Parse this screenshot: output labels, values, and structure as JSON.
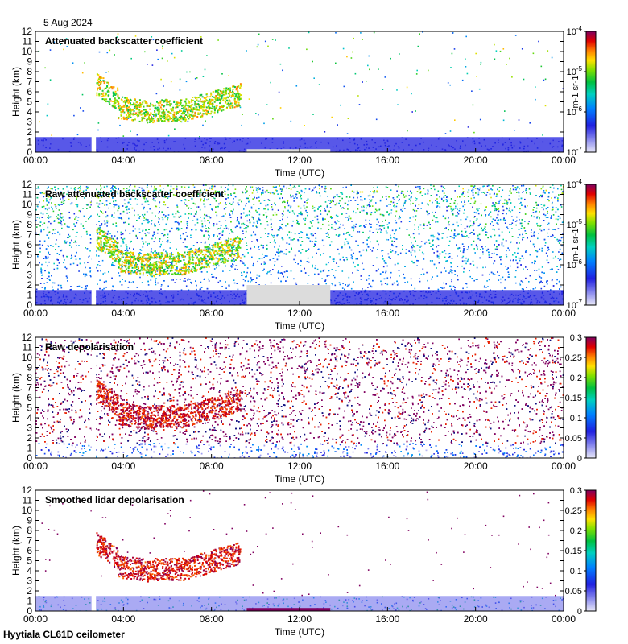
{
  "date_label": "5 Aug 2024",
  "footer_label": "Hyytiala CL61D ceilometer",
  "colors": {
    "frame": "#000000",
    "missing": "#dcdcdc",
    "background": "#ffffff",
    "clear_air": "#2020e0",
    "cirrus_low": "#00b050",
    "cirrus_high": "#ffd000",
    "peak": "#d01010",
    "noise_magenta": "#800060",
    "noise_navy": "#101080"
  },
  "chart_data": [
    {
      "type": "heatmap",
      "title": "Attenuated backscatter coefficient",
      "xlabel": "Time (UTC)",
      "ylabel": "Height (km)",
      "x_ticks": [
        "00:00",
        "04:00",
        "08:00",
        "12:00",
        "16:00",
        "20:00",
        "00:00"
      ],
      "y_ticks": [
        "0",
        "1",
        "2",
        "3",
        "4",
        "5",
        "6",
        "7",
        "8",
        "9",
        "10",
        "11",
        "12"
      ],
      "xlim_hours": [
        0,
        24
      ],
      "ylim_km": [
        0,
        12
      ],
      "colorbar": {
        "scale": "log",
        "ticks": [
          "10-7",
          "10-6",
          "10-5",
          "10-4"
        ],
        "label": "m-1 sr-1",
        "colormap": "rainbow"
      },
      "features": {
        "gap_hours": [
          2.55,
          2.75
        ],
        "no_data_hours": [
          9.6,
          13.4
        ],
        "boundary_layer_top_km": 1.5,
        "cirrus_layer_km": [
          3.2,
          7.5
        ],
        "cirrus_hours": [
          2.75,
          9.3
        ]
      }
    },
    {
      "type": "heatmap",
      "title": "Raw attenuated backscatter coefficient",
      "xlabel": "Time (UTC)",
      "ylabel": "Height (km)",
      "x_ticks": [
        "00:00",
        "04:00",
        "08:00",
        "12:00",
        "16:00",
        "20:00",
        "00:00"
      ],
      "y_ticks": [
        "0",
        "1",
        "2",
        "3",
        "4",
        "5",
        "6",
        "7",
        "8",
        "9",
        "10",
        "11",
        "12"
      ],
      "xlim_hours": [
        0,
        24
      ],
      "ylim_km": [
        0,
        12
      ],
      "colorbar": {
        "scale": "log",
        "ticks": [
          "10-7",
          "10-6",
          "10-5",
          "10-4"
        ],
        "label": "m-1 sr-1",
        "colormap": "rainbow"
      },
      "features": {
        "gap_hours": [
          2.55,
          2.75
        ],
        "no_data_hours": [
          9.6,
          13.4
        ],
        "boundary_layer_top_km": 1.5,
        "cirrus_layer_km": [
          3.2,
          7.5
        ],
        "cirrus_hours": [
          2.75,
          9.3
        ]
      }
    },
    {
      "type": "heatmap",
      "title": "Raw depolarisation",
      "xlabel": "Time (UTC)",
      "ylabel": "Height (km)",
      "x_ticks": [
        "00:00",
        "04:00",
        "08:00",
        "12:00",
        "16:00",
        "20:00",
        "00:00"
      ],
      "y_ticks": [
        "0",
        "1",
        "2",
        "3",
        "4",
        "5",
        "6",
        "7",
        "8",
        "9",
        "10",
        "11",
        "12"
      ],
      "xlim_hours": [
        0,
        24
      ],
      "ylim_km": [
        0,
        12
      ],
      "colorbar": {
        "scale": "linear",
        "ticks": [
          "0",
          "0.05",
          "0.1",
          "0.15",
          "0.2",
          "0.25",
          "0.3"
        ],
        "label": "",
        "colormap": "rainbow"
      },
      "features": {
        "gap_hours": [
          2.55,
          2.75
        ],
        "boundary_layer_top_km": 1.5,
        "cirrus_layer_km": [
          3.2,
          7.5
        ],
        "cirrus_hours": [
          2.75,
          9.3
        ]
      }
    },
    {
      "type": "heatmap",
      "title": "Smoothed lidar depolarisation",
      "xlabel": "Time (UTC)",
      "ylabel": "Height (km)",
      "x_ticks": [
        "00:00",
        "04:00",
        "08:00",
        "12:00",
        "16:00",
        "20:00",
        "00:00"
      ],
      "y_ticks": [
        "0",
        "1",
        "2",
        "3",
        "4",
        "5",
        "6",
        "7",
        "8",
        "9",
        "10",
        "11",
        "12"
      ],
      "xlim_hours": [
        0,
        24
      ],
      "ylim_km": [
        0,
        12
      ],
      "colorbar": {
        "scale": "linear",
        "ticks": [
          "0",
          "0.05",
          "0.1",
          "0.15",
          "0.2",
          "0.25",
          "0.3"
        ],
        "label": "",
        "colormap": "rainbow"
      },
      "features": {
        "gap_hours": [
          2.55,
          2.75
        ],
        "no_data_hours": [
          9.6,
          13.4
        ],
        "boundary_layer_top_km": 1.5,
        "cirrus_layer_km": [
          3.2,
          7.5
        ],
        "cirrus_hours": [
          2.75,
          9.3
        ]
      }
    }
  ]
}
